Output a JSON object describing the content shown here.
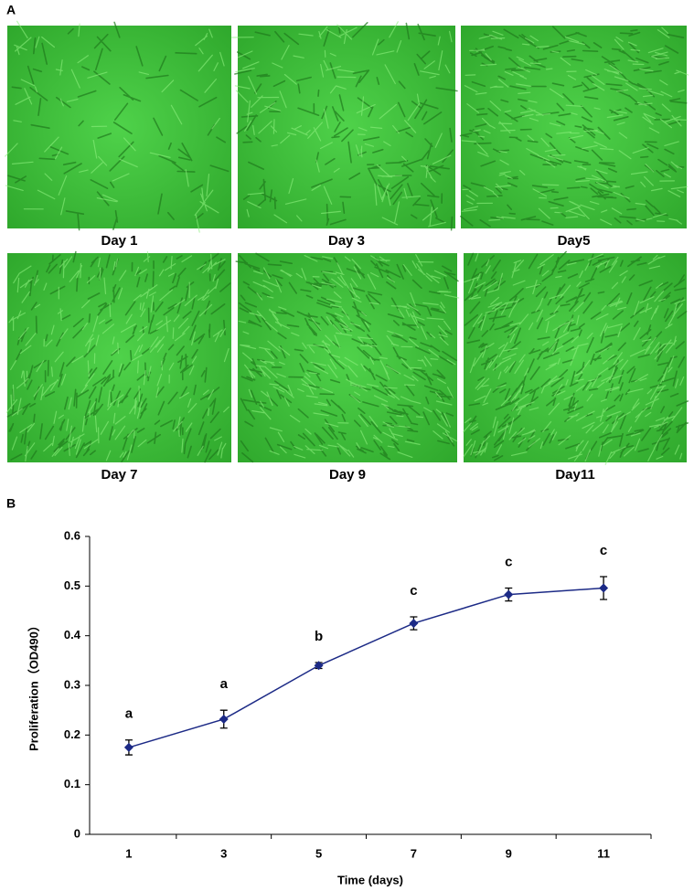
{
  "panel_labels": [
    "A",
    "B"
  ],
  "images": [
    {
      "caption": "Day 1"
    },
    {
      "caption": "Day 3"
    },
    {
      "caption": "Day5"
    },
    {
      "caption": "Day 7"
    },
    {
      "caption": "Day 9"
    },
    {
      "caption": "Day11"
    }
  ],
  "chart_data": {
    "type": "line",
    "x_label": "Time (days)",
    "y_label": "Proliferation（OD490）",
    "categories": [
      "1",
      "3",
      "5",
      "7",
      "9",
      "11"
    ],
    "series": [
      {
        "color": "#1c2a86",
        "values": [
          0.175,
          0.232,
          0.34,
          0.425,
          0.483,
          0.496
        ],
        "errors": [
          0.015,
          0.018,
          0.006,
          0.013,
          0.013,
          0.023
        ]
      }
    ],
    "annotations": [
      "a",
      "a",
      "b",
      "c",
      "c",
      "c"
    ],
    "ylim": [
      0,
      0.6
    ],
    "yticks": [
      0,
      0.1,
      0.2,
      0.3,
      0.4,
      0.5,
      0.6
    ],
    "grid": false
  }
}
